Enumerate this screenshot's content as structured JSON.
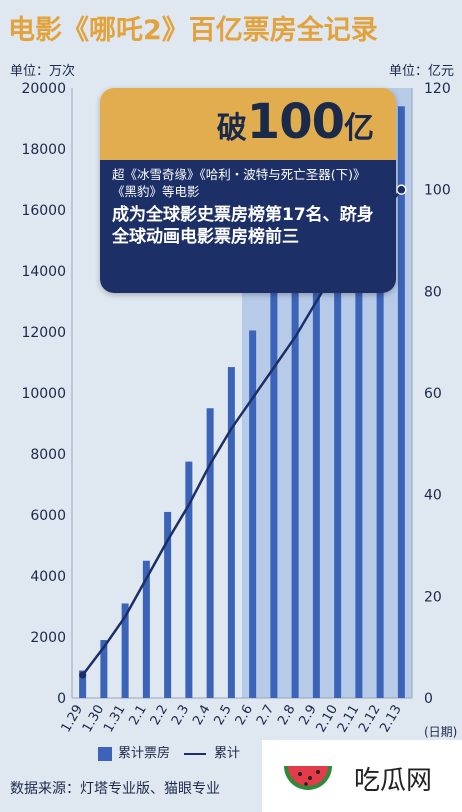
{
  "header": {
    "title": "电影《哪吒2》百亿票房全记录",
    "unit_left": "单位：万次",
    "unit_right": "单位：亿元"
  },
  "callout": {
    "prefix": "破",
    "number": "100",
    "suffix": "亿",
    "line1": "超《冰雪奇缘》《哈利・波特与死亡圣器(下)》《黑豹》等电影",
    "line2": "成为全球影史票房榜第17名、跻身全球动画电影票房榜前三"
  },
  "legend": {
    "bar_label": "累计票房",
    "line_label": "累计"
  },
  "source": "数据来源：灯塔专业版、猫眼专业",
  "logo": {
    "text": "吃瓜网",
    "icon": "watermelon-icon"
  },
  "colors": {
    "bar": "#3b64b8",
    "line": "#1c2f66",
    "title": "#e3a33c",
    "callout_head": "#e2ad4f",
    "callout_body": "#1c2f66"
  },
  "chart_data": {
    "type": "bar",
    "categories": [
      "1.29",
      "1.30",
      "1.31",
      "2.1",
      "2.2",
      "2.3",
      "2.4",
      "2.5",
      "2.6",
      "2.7",
      "2.8",
      "2.9",
      "2.10",
      "2.11",
      "2.12",
      "2.13"
    ],
    "x_unit": "(日期)",
    "series": [
      {
        "name": "累计票房",
        "type": "bar",
        "axis": "left",
        "values": [
          900,
          1900,
          3100,
          4500,
          6100,
          7750,
          9500,
          10850,
          12050,
          13300,
          14500,
          15900,
          17000,
          17800,
          18500,
          19400
        ]
      },
      {
        "type": "line",
        "axis": "right",
        "values": [
          4.5,
          10,
          16,
          23.5,
          31,
          38,
          46,
          53,
          59,
          65,
          71,
          78,
          85,
          90,
          95,
          100
        ]
      }
    ],
    "y_left": {
      "ticks": [
        "0",
        "2000",
        "4000",
        "6000",
        "8000",
        "10000",
        "12000",
        "14000",
        "16000",
        "18000",
        "20000"
      ],
      "ylim": [
        0,
        20000
      ]
    },
    "y_right": {
      "ticks": [
        "0",
        "20",
        "40",
        "60",
        "80",
        "100",
        "120"
      ],
      "ylim": [
        0,
        120
      ]
    },
    "highlight_range": [
      "2.6",
      "2.13"
    ]
  }
}
